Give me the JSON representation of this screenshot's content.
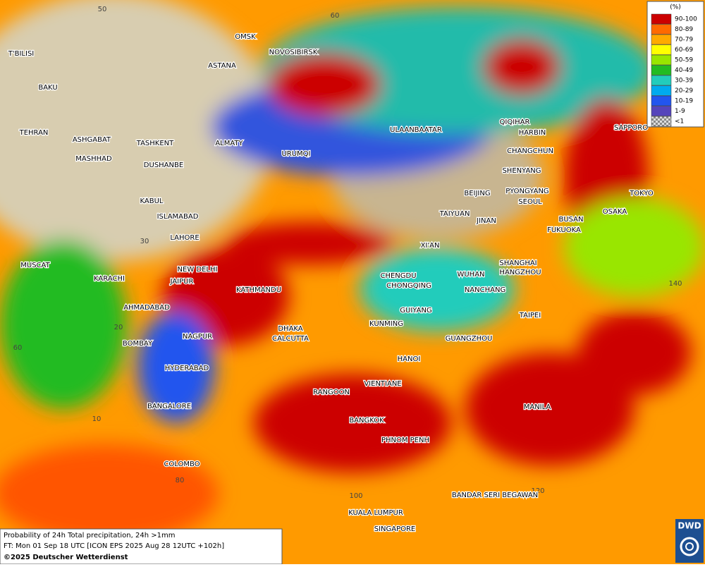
{
  "map": {
    "cities": [
      "OMSK",
      "NOVOSIBIRSK",
      "ASTANA",
      "T'BILISI",
      "BAKU",
      "TEHRAN",
      "ASHGABAT",
      "MASHHAD",
      "TASHKENT",
      "ALMATY",
      "URUMQI",
      "DUSHANBE",
      "ULAANBAATAR",
      "QIQIHAR",
      "HARBIN",
      "CHANGCHUN",
      "SHENYANG",
      "BEIJING",
      "PYONGYANG",
      "SEOUL",
      "SAPPORO",
      "TOKYO",
      "OSAKA",
      "BUSAN",
      "FUKUOKA",
      "TAIYUAN",
      "JINAN",
      "XI'AN",
      "KABUL",
      "ISLAMABAD",
      "LAHORE",
      "MUSCAT",
      "KARACHI",
      "NEW DELHI",
      "JAIPUR",
      "KATHMANDU",
      "CHENGDU",
      "CHONGQING",
      "WUHAN",
      "SHANGHAI",
      "HANGZHOU",
      "NANCHANG",
      "AHMADABAD",
      "GUIYANG",
      "TAIPEI",
      "KUNMING",
      "DHAKA",
      "NAGPUR",
      "CALCUTTA",
      "BOMBAY",
      "GUANGZHOU",
      "HANOI",
      "HYDERABAD",
      "RANGOON",
      "VIENTIANE",
      "BANGALORE",
      "MANILA",
      "BANGKOK",
      "PHNOM PENH",
      "COLOMBO",
      "BANDAR SERI BEGAWAN",
      "KUALA LUMPUR",
      "SINGAPORE"
    ],
    "grid_labels": [
      50,
      60,
      30,
      20,
      60,
      10,
      80,
      100,
      120,
      140
    ]
  },
  "legend": {
    "title": "(%)",
    "items": [
      {
        "label": "90-100",
        "color": "#cc0000"
      },
      {
        "label": "80-89",
        "color": "#ff6a00"
      },
      {
        "label": "70-79",
        "color": "#ffaa00"
      },
      {
        "label": "60-69",
        "color": "#ffff00"
      },
      {
        "label": "50-59",
        "color": "#99e600"
      },
      {
        "label": "40-49",
        "color": "#22bb22"
      },
      {
        "label": "30-39",
        "color": "#22ccbb"
      },
      {
        "label": "20-29",
        "color": "#00aaee"
      },
      {
        "label": "10-19",
        "color": "#2255ee"
      },
      {
        "label": "1-9",
        "color": "#5544bb"
      },
      {
        "label": "<1",
        "color": "#b0b0b0"
      }
    ]
  },
  "footer": {
    "line1": "Probability of 24h Total precipitation, 24h >1mm",
    "line2": "FT: Mon 01 Sep 18 UTC [ICON EPS 2025 Aug 28 12UTC +102h]",
    "line3": "©2025 Deutscher Wetterdienst"
  },
  "logo": "DWD"
}
